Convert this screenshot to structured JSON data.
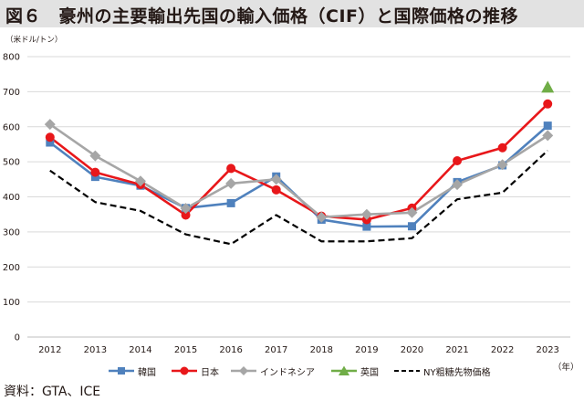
{
  "title": "図６　豪州の主要輸出先国の輸入価格（CIF）と国際価格の推移",
  "unit_label": "（米ドル/トン）",
  "year_label": "（年）",
  "source": "資料：GTA、ICE",
  "colors": {
    "korea": "#4f81bd",
    "japan": "#e8171a",
    "indonesia": "#a6a6a6",
    "uk": "#70ad47",
    "ny": "#000000",
    "grid": "#d9d9d9",
    "title_bg": "#e2e2e2"
  },
  "chart_data": {
    "type": "line",
    "title": "図６　豪州の主要輸出先国の輸入価格（CIF）と国際価格の推移",
    "xlabel": "（年）",
    "ylabel": "（米ドル/トン）",
    "ylim": [
      0,
      800
    ],
    "yticks": [
      0,
      100,
      200,
      300,
      400,
      500,
      600,
      700,
      800
    ],
    "grid": true,
    "legend_position": "bottom",
    "x": [
      "2012",
      "2013",
      "2014",
      "2015",
      "2016",
      "2017",
      "2018",
      "2019",
      "2020",
      "2021",
      "2022",
      "2023"
    ],
    "series": [
      {
        "name": "韓国",
        "key": "korea",
        "marker": "square",
        "dash": false,
        "values": [
          555,
          457,
          432,
          368,
          382,
          458,
          335,
          315,
          316,
          442,
          490,
          603
        ]
      },
      {
        "name": "日本",
        "key": "japan",
        "marker": "circle",
        "dash": false,
        "values": [
          570,
          470,
          435,
          348,
          481,
          420,
          345,
          335,
          368,
          503,
          540,
          665
        ]
      },
      {
        "name": "インドネシア",
        "key": "indonesia",
        "marker": "diamond",
        "dash": false,
        "values": [
          607,
          517,
          445,
          367,
          438,
          450,
          342,
          350,
          355,
          435,
          492,
          575
        ]
      },
      {
        "name": "英国",
        "key": "uk",
        "marker": "triangle",
        "dash": false,
        "values": [
          null,
          null,
          null,
          null,
          null,
          null,
          null,
          null,
          null,
          null,
          null,
          713
        ]
      },
      {
        "name": "NY粗糖先物価格",
        "key": "ny",
        "marker": "none",
        "dash": true,
        "values": [
          475,
          385,
          360,
          293,
          265,
          348,
          273,
          273,
          282,
          393,
          412,
          532
        ]
      }
    ]
  }
}
